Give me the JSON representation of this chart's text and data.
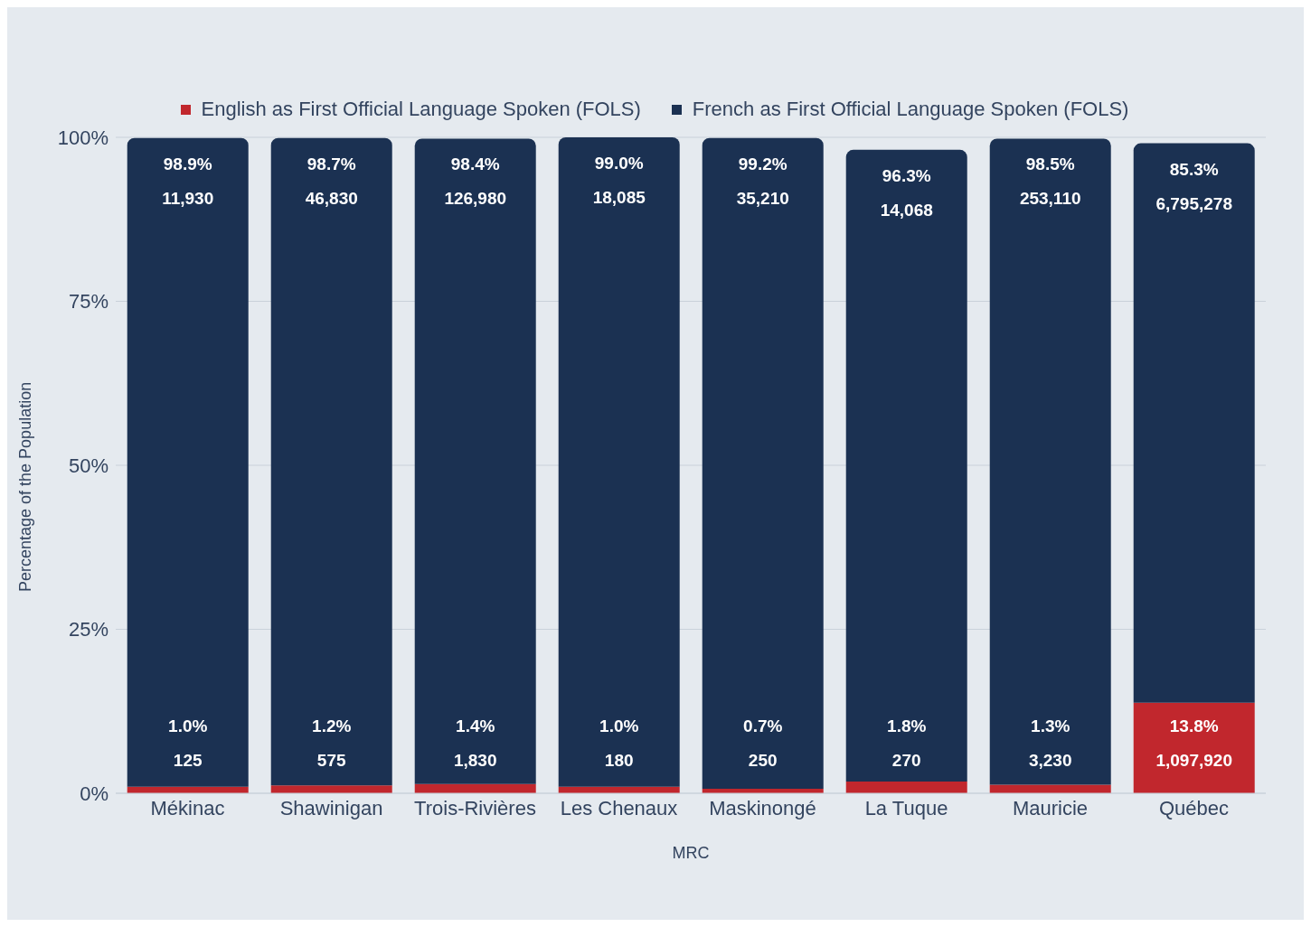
{
  "chart_data": {
    "type": "bar",
    "stacked": true,
    "xlabel": "MRC",
    "ylabel": "Percentage of the Population",
    "categories": [
      "Mékinac",
      "Shawinigan",
      "Trois-Rivières",
      "Les Chenaux",
      "Maskinongé",
      "La Tuque",
      "Mauricie",
      "Québec"
    ],
    "series": [
      {
        "name": "English as First Official Language Spoken (FOLS)",
        "color": "#c1272d",
        "values": [
          1.0,
          1.2,
          1.4,
          1.0,
          0.7,
          1.8,
          1.3,
          13.8
        ],
        "value_labels": [
          "1.0%\n125",
          "1.2%\n575",
          "1.4%\n1,830",
          "1.0%\n180",
          "0.7%\n250",
          "1.8%\n270",
          "1.3%\n3,230",
          "13.8%\n1,097,920"
        ]
      },
      {
        "name": "French as First Official Language Spoken (FOLS)",
        "color": "#1b3152",
        "values": [
          98.9,
          98.7,
          98.4,
          99.0,
          99.2,
          96.3,
          98.5,
          85.3
        ],
        "value_labels": [
          "98.9%\n11,930",
          "98.7%\n46,830",
          "98.4%\n126,980",
          "99.0%\n18,085",
          "99.2%\n35,210",
          "96.3%\n14,068",
          "98.5%\n253,110",
          "85.3%\n6,795,278"
        ]
      }
    ],
    "ylim": [
      0,
      100
    ],
    "yticks": [
      {
        "value": 0,
        "label": "0%"
      },
      {
        "value": 25,
        "label": "25%"
      },
      {
        "value": 50,
        "label": "50%"
      },
      {
        "value": 75,
        "label": "75%"
      },
      {
        "value": 100,
        "label": "100%"
      }
    ],
    "grid": "y",
    "legend": "top"
  }
}
